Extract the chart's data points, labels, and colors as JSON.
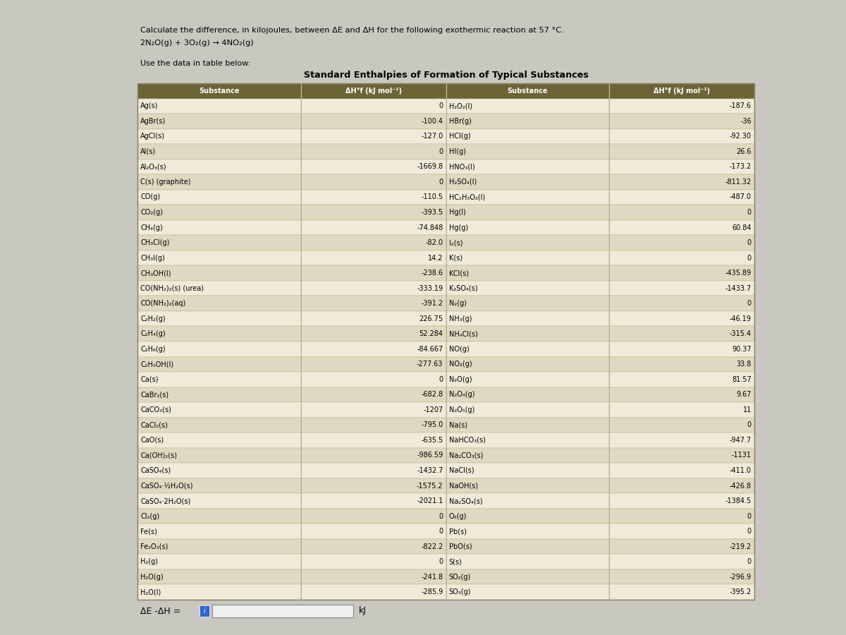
{
  "title_line1": "Calculate the difference, in kilojoules, between ΔE and ΔH for the following exothermic reaction at 57 °C.",
  "title_line2": "2N₂O(g) + 3O₂(g) → 4NO₂(g)",
  "subtitle": "Use the data in table below:",
  "table_title": "Standard Enthalpies of Formation of Typical Substances",
  "left_data": [
    [
      "Ag(s)",
      "0"
    ],
    [
      "AgBr(s)",
      "-100.4"
    ],
    [
      "AgCl(s)",
      "-127.0"
    ],
    [
      "Al(s)",
      "0"
    ],
    [
      "Al₂O₃(s)",
      "-1669.8"
    ],
    [
      "C(s) (graphite)",
      "0"
    ],
    [
      "CO(g)",
      "-110.5"
    ],
    [
      "CO₂(g)",
      "-393.5"
    ],
    [
      "CH₄(g)",
      "-74.848"
    ],
    [
      "CH₃Cl(g)",
      "-82.0"
    ],
    [
      "CH₃I(g)",
      "14.2"
    ],
    [
      "CH₃OH(l)",
      "-238.6"
    ],
    [
      "CO(NH₂)₂(s) (urea)",
      "-333.19"
    ],
    [
      "CO(NH₂)₂(aq)",
      "-391.2"
    ],
    [
      "C₂H₂(g)",
      "226.75"
    ],
    [
      "C₂H₄(g)",
      "52.284"
    ],
    [
      "C₂H₆(g)",
      "-84.667"
    ],
    [
      "C₂H₅OH(l)",
      "-277.63"
    ],
    [
      "Ca(s)",
      "0"
    ],
    [
      "CaBr₂(s)",
      "-682.8"
    ],
    [
      "CaCO₃(s)",
      "-1207"
    ],
    [
      "CaCl₂(s)",
      "-795.0"
    ],
    [
      "CaO(s)",
      "-635.5"
    ],
    [
      "Ca(OH)₂(s)",
      "-986.59"
    ],
    [
      "CaSO₄(s)",
      "-1432.7"
    ],
    [
      "CaSO₄·½H₂O(s)",
      "-1575.2"
    ],
    [
      "CaSO₄·2H₂O(s)",
      "-2021.1"
    ],
    [
      "Cl₂(g)",
      "0"
    ],
    [
      "Fe(s)",
      "0"
    ],
    [
      "Fe₂O₃(s)",
      "-822.2"
    ],
    [
      "H₂(g)",
      "0"
    ],
    [
      "H₂O(g)",
      "-241.8"
    ],
    [
      "H₂O(l)",
      "-285.9"
    ]
  ],
  "right_data": [
    [
      "H₂O₂(l)",
      "-187.6"
    ],
    [
      "HBr(g)",
      "-36"
    ],
    [
      "HCl(g)",
      "-92.30"
    ],
    [
      "HI(g)",
      "26.6"
    ],
    [
      "HNO₃(l)",
      "-173.2"
    ],
    [
      "H₂SO₄(l)",
      "-811.32"
    ],
    [
      "HC₂H₃O₂(l)",
      "-487.0"
    ],
    [
      "Hg(l)",
      "0"
    ],
    [
      "Hg(g)",
      "60.84"
    ],
    [
      "I₂(s)",
      "0"
    ],
    [
      "K(s)",
      "0"
    ],
    [
      "KCl(s)",
      "-435.89"
    ],
    [
      "K₂SO₄(s)",
      "-1433.7"
    ],
    [
      "N₂(g)",
      "0"
    ],
    [
      "NH₃(g)",
      "-46.19"
    ],
    [
      "NH₄Cl(s)",
      "-315.4"
    ],
    [
      "NO(g)",
      "90.37"
    ],
    [
      "NO₂(g)",
      "33.8"
    ],
    [
      "N₂O(g)",
      "81.57"
    ],
    [
      "N₂O₄(g)",
      "9.67"
    ],
    [
      "N₂O₅(g)",
      "11"
    ],
    [
      "Na(s)",
      "0"
    ],
    [
      "NaHCO₃(s)",
      "-947.7"
    ],
    [
      "Na₂CO₃(s)",
      "-1131"
    ],
    [
      "NaCl(s)",
      "-411.0"
    ],
    [
      "NaOH(s)",
      "-426.8"
    ],
    [
      "Na₂SO₄(s)",
      "-1384.5"
    ],
    [
      "O₃(g)",
      "0"
    ],
    [
      "Pb(s)",
      "0"
    ],
    [
      "PbO(s)",
      "-219.2"
    ],
    [
      "S(s)",
      "0"
    ],
    [
      "SO₂(g)",
      "-296.9"
    ],
    [
      "SO₃(g)",
      "-395.2"
    ]
  ],
  "footer_label": "ΔE -ΔH =",
  "footer_unit": "kJ",
  "page_bg": "#c8c8c0",
  "white_bg": "#ffffff",
  "table_bg": "#f0ead8",
  "header_bg": "#6b6535",
  "header_fg": "#ffffff",
  "row_even_color": "#f0ead8",
  "row_odd_color": "#e0d8c0",
  "input_box_bg": "#3366cc",
  "input_box_border": "#ffffff",
  "col_header_texts": [
    "Substance",
    "ΔH°f (kJ mol⁻¹)",
    "Substance",
    "ΔH°f (kJ mol⁻¹)"
  ]
}
